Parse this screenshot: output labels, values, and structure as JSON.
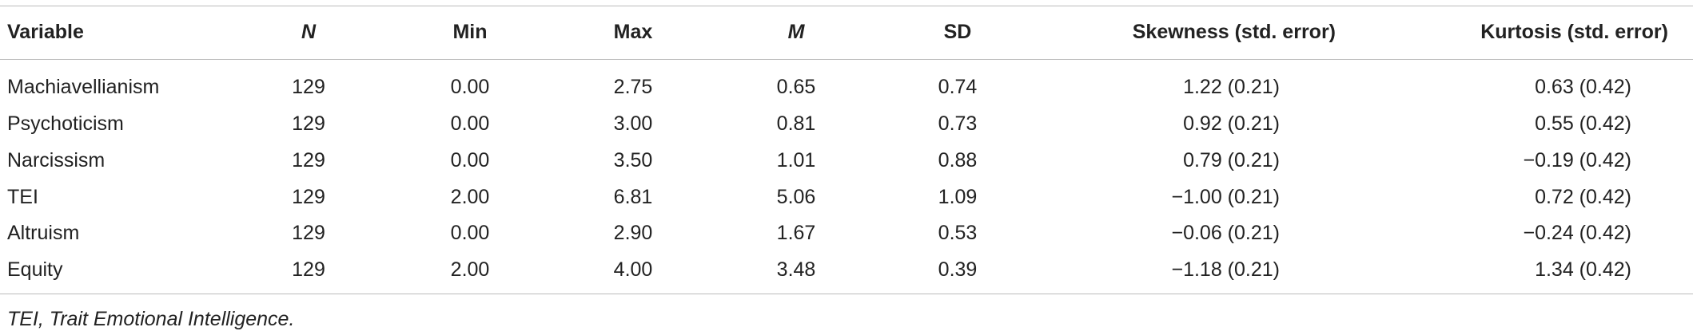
{
  "table": {
    "header": [
      "Variable",
      "N",
      "Min",
      "Max",
      "M",
      "SD",
      "Skewness (std. error)",
      "Kurtosis (std. error)"
    ],
    "rows": [
      [
        "Machiavellianism",
        "129",
        "0.00",
        "2.75",
        "0.65",
        "0.74",
        "1.22 (0.21)",
        "0.63 (0.42)"
      ],
      [
        "Psychoticism",
        "129",
        "0.00",
        "3.00",
        "0.81",
        "0.73",
        "0.92 (0.21)",
        "0.55 (0.42)"
      ],
      [
        "Narcissism",
        "129",
        "0.00",
        "3.50",
        "1.01",
        "0.88",
        "0.79 (0.21)",
        "−0.19 (0.42)"
      ],
      [
        "TEI",
        "129",
        "2.00",
        "6.81",
        "5.06",
        "1.09",
        "−1.00 (0.21)",
        "0.72 (0.42)"
      ],
      [
        "Altruism",
        "129",
        "0.00",
        "2.90",
        "1.67",
        "0.53",
        "−0.06 (0.21)",
        "−0.24 (0.42)"
      ],
      [
        "Equity",
        "129",
        "2.00",
        "4.00",
        "3.48",
        "0.39",
        "−1.18 (0.21)",
        "1.34 (0.42)"
      ]
    ],
    "footnote": "TEI, Trait Emotional Intelligence."
  }
}
